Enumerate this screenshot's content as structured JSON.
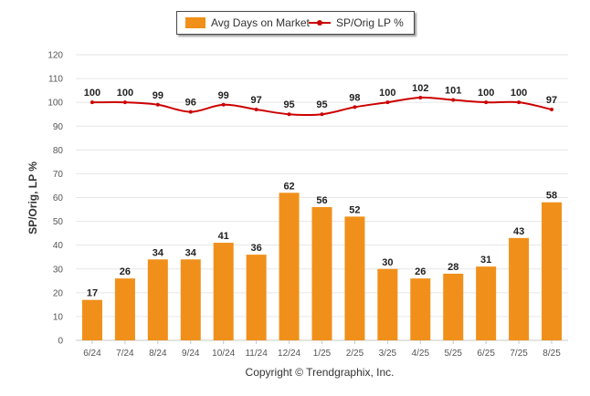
{
  "chart_data": {
    "type": "bar",
    "categories": [
      "6/24",
      "7/24",
      "8/24",
      "9/24",
      "10/24",
      "11/24",
      "12/24",
      "1/25",
      "2/25",
      "3/25",
      "4/25",
      "5/25",
      "6/25",
      "7/25",
      "8/25"
    ],
    "series": [
      {
        "name": "Avg Days on Market",
        "type": "bar",
        "color": "#f0901a",
        "values": [
          17,
          26,
          34,
          34,
          41,
          36,
          62,
          56,
          52,
          30,
          26,
          28,
          31,
          43,
          58
        ]
      },
      {
        "name": "SP/Orig LP %",
        "type": "line",
        "color": "#cc0000",
        "values": [
          100,
          100,
          99,
          96,
          99,
          97,
          95,
          95,
          98,
          100,
          102,
          101,
          100,
          100,
          97
        ]
      }
    ],
    "ylabel": "SP/Orig, LP %",
    "xlabel": "",
    "ylim": [
      0,
      120
    ],
    "yticks": [
      0,
      10,
      20,
      30,
      40,
      50,
      60,
      70,
      80,
      90,
      100,
      110,
      120
    ],
    "grid": true,
    "legend_position": "top-center",
    "data_labels": true
  },
  "footer": {
    "copyright": "Copyright © Trendgraphix, Inc."
  }
}
